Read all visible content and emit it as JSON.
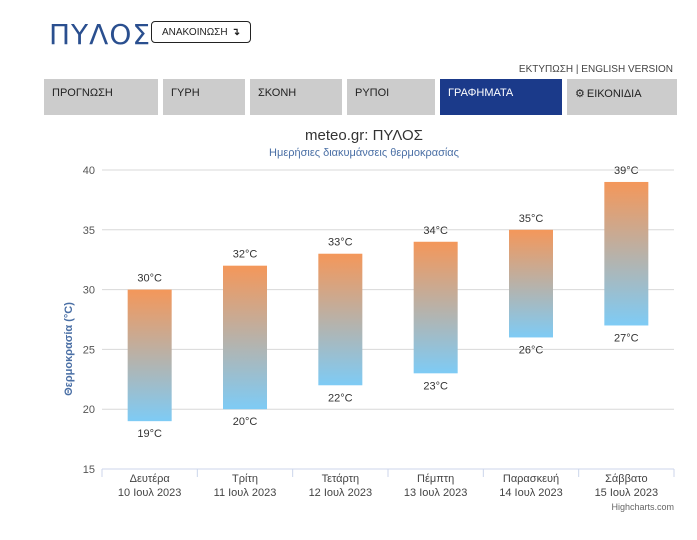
{
  "header": {
    "city": "ΠΥΛΟΣ",
    "announce_label": "ΑΝΑΚΟΙΝΩΣΗ",
    "announce_icon": "arrow-down-icon",
    "print_link": "ΕΚΤΥΠΩΣΗ",
    "separator": "|",
    "english_link": "ENGLISH VERSION"
  },
  "tabs": [
    {
      "label": "ΠΡΟΓΝΩΣΗ",
      "active": false
    },
    {
      "label": "ΓΥΡΗ",
      "active": false
    },
    {
      "label": "ΣΚΟΝΗ",
      "active": false
    },
    {
      "label": "ΡΥΠΟΙ",
      "active": false
    },
    {
      "label": "ΓΡΑΦΗΜΑΤΑ",
      "active": true
    },
    {
      "label": "ΕΙΚΟΝΙΔΙΑ",
      "active": false,
      "icon": "gear-icon"
    }
  ],
  "colors": {
    "tab_active": "#1b3a8a",
    "tab_inactive": "#cccccc",
    "bar_top": "#f4975a",
    "bar_bottom": "#7ecbf5",
    "title": "#2a4f8f"
  },
  "chart_data": {
    "type": "columnrange",
    "title": "meteo.gr: ΠΥΛΟΣ",
    "subtitle": "Ημερήσιες διακυμάνσεις θερμοκρασίας",
    "ylabel": "Θερμοκρασία (°C)",
    "ylim": [
      15,
      40
    ],
    "yticks": [
      15,
      20,
      25,
      30,
      35,
      40
    ],
    "grid": true,
    "categories": [
      {
        "day": "Δευτέρα",
        "date": "10 Ιουλ 2023"
      },
      {
        "day": "Τρίτη",
        "date": "11 Ιουλ 2023"
      },
      {
        "day": "Τετάρτη",
        "date": "12 Ιουλ 2023"
      },
      {
        "day": "Πέμπτη",
        "date": "13 Ιουλ 2023"
      },
      {
        "day": "Παρασκευή",
        "date": "14 Ιουλ 2023"
      },
      {
        "day": "Σάββατο",
        "date": "15 Ιουλ 2023"
      }
    ],
    "low": [
      19,
      20,
      22,
      23,
      26,
      27
    ],
    "high": [
      30,
      32,
      33,
      34,
      35,
      39
    ],
    "unit": "°C",
    "credits": "Highcharts.com"
  }
}
